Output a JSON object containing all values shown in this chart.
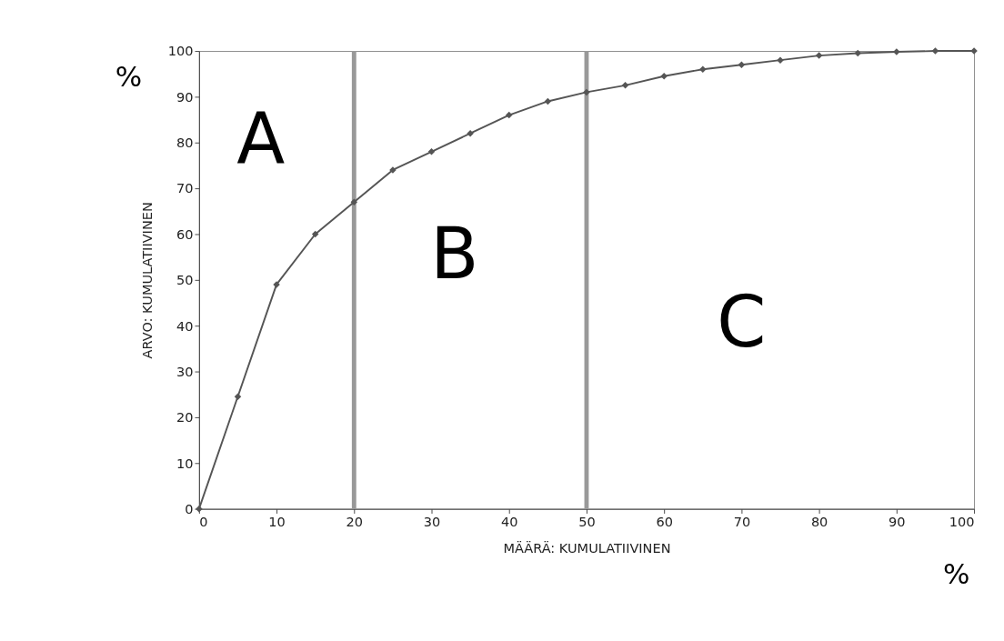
{
  "chart_data": {
    "type": "line",
    "xlabel": "MÄÄRÄ: KUMULATIIVINEN",
    "ylabel": "ARVO: KUMULATIIVINEN",
    "x": [
      0,
      5,
      10,
      15,
      20,
      25,
      30,
      35,
      40,
      45,
      50,
      55,
      60,
      65,
      70,
      75,
      80,
      85,
      90,
      95,
      100
    ],
    "series": [
      {
        "color": "#555555",
        "values": [
          0,
          24.5,
          49,
          60,
          67,
          74,
          78,
          82,
          86,
          89,
          91,
          92.5,
          94.5,
          96,
          97,
          98,
          99,
          99.5,
          99.8,
          100,
          100
        ]
      }
    ],
    "xlim": [
      0,
      100
    ],
    "ylim": [
      0,
      100
    ],
    "xticks": [
      0,
      10,
      20,
      30,
      40,
      50,
      60,
      70,
      80,
      90,
      100
    ],
    "yticks": [
      0,
      10,
      20,
      30,
      40,
      50,
      60,
      70,
      80,
      90,
      100
    ],
    "ref_lines": [
      {
        "axis": "x",
        "value": 20,
        "color": "#999999"
      },
      {
        "axis": "x",
        "value": 50,
        "color": "#999999"
      }
    ],
    "annotations": [
      "%",
      "A",
      "B",
      "C",
      "%"
    ],
    "grid": false,
    "marker": "diamond",
    "line_style": "solid"
  }
}
